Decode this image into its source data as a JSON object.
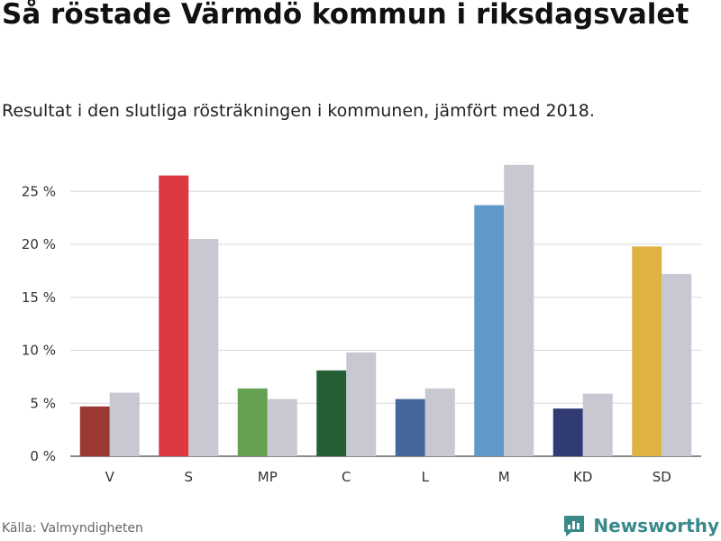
{
  "header": {
    "title": "Så röstade Värmdö kommun i riksdagsvalet",
    "subtitle": "Resultat i den slutliga rösträkningen i kommunen, jämfört med 2018."
  },
  "footer": {
    "source": "Källa: Valmyndigheten",
    "brand": "Newsworthy",
    "brand_icon": "bar-chart-speech-bubble-icon"
  },
  "chart_data": {
    "type": "bar",
    "categories": [
      "V",
      "S",
      "MP",
      "C",
      "L",
      "M",
      "KD",
      "SD"
    ],
    "series": [
      {
        "values": [
          4.7,
          26.5,
          6.4,
          8.1,
          5.4,
          23.7,
          4.5,
          19.8
        ]
      },
      {
        "values": [
          6.0,
          20.5,
          5.4,
          9.8,
          6.4,
          27.5,
          5.9,
          17.2
        ]
      }
    ],
    "bar_colors_current": [
      "#9b3a33",
      "#dc3a40",
      "#64a051",
      "#255f36",
      "#44689a",
      "#6098c8",
      "#2f3b72",
      "#deb343"
    ],
    "previous_color": "#c8c8d2",
    "yticks": [
      "0 %",
      "5 %",
      "10 %",
      "15 %",
      "20 %",
      "25 %"
    ],
    "ytick_values": [
      0,
      5,
      10,
      15,
      20,
      25
    ],
    "ylim": [
      0,
      28
    ],
    "grid": true,
    "legend": "none"
  }
}
